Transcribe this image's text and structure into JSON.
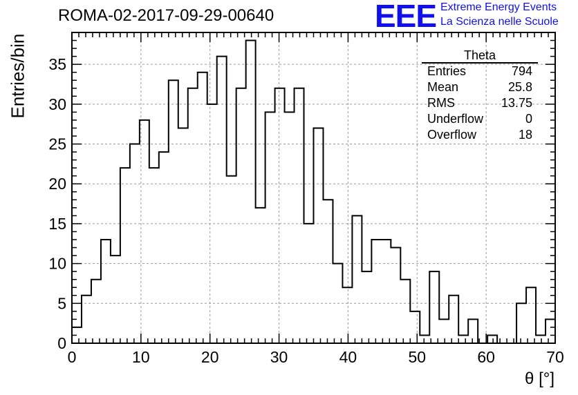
{
  "title": "ROMA-02-2017-09-29-00640",
  "logo": {
    "mark": "EEE",
    "line1": "Extreme Energy Events",
    "line2": "La Scienza nelle Scuole",
    "color": "#1010ee"
  },
  "stats": {
    "title": "Theta",
    "rows": [
      {
        "label": "Entries",
        "value": "794"
      },
      {
        "label": "Mean",
        "value": "25.8"
      },
      {
        "label": "RMS",
        "value": "13.75"
      },
      {
        "label": "Underflow",
        "value": "0"
      },
      {
        "label": "Overflow",
        "value": "18"
      }
    ]
  },
  "chart_data": {
    "type": "histogram",
    "title": "ROMA-02-2017-09-29-00640",
    "xlabel": "θ [°]",
    "ylabel": "Entries/bin",
    "xlim": [
      0,
      70
    ],
    "ylim": [
      0,
      39
    ],
    "bin_width": 1.4,
    "bin_start": 0,
    "values": [
      2,
      6,
      8,
      13,
      11,
      22,
      25,
      28,
      22,
      24,
      33,
      27,
      32,
      34,
      30,
      36,
      21,
      32,
      38,
      17,
      29,
      32,
      29,
      32,
      15,
      27,
      18,
      10,
      7,
      16,
      9,
      13,
      13,
      12,
      8,
      4,
      1,
      9,
      3,
      6,
      1,
      3,
      0,
      1,
      0,
      0,
      5,
      7,
      1,
      3
    ],
    "x_ticks": [
      "0",
      "10",
      "20",
      "30",
      "40",
      "50",
      "60",
      "70"
    ],
    "y_ticks": [
      "0",
      "5",
      "10",
      "15",
      "20",
      "25",
      "30",
      "35"
    ],
    "grid": true,
    "line_color": "#000000"
  }
}
